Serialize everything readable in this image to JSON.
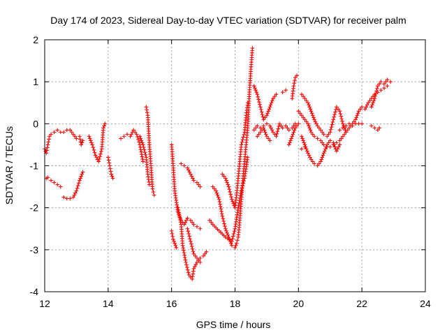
{
  "chart_data": {
    "type": "scatter",
    "title": "Day 174 of 2023, Sidereal Day-to-day VTEC variation (SDTVAR) for receiver palm",
    "xlabel": "GPS time / hours",
    "ylabel": "SDTVAR / TECUs",
    "xlim": [
      12,
      24
    ],
    "ylim": [
      -4,
      2
    ],
    "xticks": [
      "12",
      "14",
      "16",
      "18",
      "20",
      "22",
      "24"
    ],
    "yticks": [
      "2",
      "1",
      "0",
      "-1",
      "-2",
      "-3",
      "-4"
    ],
    "xtick_values": [
      12,
      14,
      16,
      18,
      20,
      22,
      24
    ],
    "ytick_values": [
      2,
      1,
      0,
      -1,
      -2,
      -3,
      -4
    ],
    "grid": true,
    "marker": "+",
    "marker_color": "#ff0000",
    "series": [
      {
        "name": "s1",
        "points": [
          [
            12.0,
            -0.6
          ],
          [
            12.05,
            -0.7
          ],
          [
            12.1,
            -0.5
          ],
          [
            12.15,
            -0.3
          ],
          [
            12.2,
            -0.25
          ],
          [
            12.3,
            -0.2
          ],
          [
            12.4,
            -0.15
          ],
          [
            12.5,
            -0.2
          ]
        ]
      },
      {
        "name": "s2",
        "points": [
          [
            12.05,
            -1.3
          ],
          [
            12.1,
            -1.28
          ],
          [
            12.2,
            -1.35
          ],
          [
            12.3,
            -1.4
          ],
          [
            12.4,
            -1.45
          ],
          [
            12.5,
            -1.5
          ]
        ]
      },
      {
        "name": "s3",
        "points": [
          [
            12.6,
            -1.75
          ],
          [
            12.7,
            -1.78
          ],
          [
            12.8,
            -1.78
          ],
          [
            12.9,
            -1.75
          ],
          [
            13.0,
            -1.6
          ],
          [
            13.1,
            -1.35
          ],
          [
            13.2,
            -1.15
          ]
        ]
      },
      {
        "name": "s4",
        "points": [
          [
            12.6,
            -0.2
          ],
          [
            12.7,
            -0.15
          ],
          [
            12.8,
            -0.15
          ],
          [
            12.9,
            -0.25
          ],
          [
            13.0,
            -0.35
          ],
          [
            13.1,
            -0.3
          ],
          [
            13.15,
            -0.5
          ],
          [
            13.2,
            -0.4
          ]
        ]
      },
      {
        "name": "s5",
        "points": [
          [
            13.4,
            -0.3
          ],
          [
            13.5,
            -0.5
          ],
          [
            13.6,
            -0.75
          ],
          [
            13.7,
            -0.9
          ],
          [
            13.8,
            -0.6
          ],
          [
            13.85,
            -0.1
          ],
          [
            13.9,
            0.0
          ]
        ]
      },
      {
        "name": "s6",
        "points": [
          [
            14.0,
            -0.8
          ],
          [
            14.05,
            -1.0
          ],
          [
            14.1,
            -1.2
          ],
          [
            14.15,
            -1.3
          ]
        ]
      },
      {
        "name": "s7",
        "points": [
          [
            14.4,
            -0.35
          ],
          [
            14.5,
            -0.3
          ],
          [
            14.6,
            -0.25
          ],
          [
            14.7,
            -0.3
          ],
          [
            14.8,
            -0.15
          ],
          [
            14.9,
            -0.25
          ],
          [
            15.0,
            -0.5
          ],
          [
            15.1,
            -0.9
          ]
        ]
      },
      {
        "name": "s8",
        "points": [
          [
            15.0,
            -0.3
          ],
          [
            15.1,
            -0.5
          ],
          [
            15.2,
            -0.8
          ],
          [
            15.25,
            -1.2
          ],
          [
            15.3,
            -1.45
          ]
        ]
      },
      {
        "name": "s9",
        "points": [
          [
            15.2,
            0.4
          ],
          [
            15.25,
            0.2
          ],
          [
            15.3,
            -0.5
          ],
          [
            15.35,
            -1.0
          ],
          [
            15.4,
            -1.55
          ],
          [
            15.45,
            -1.7
          ]
        ]
      },
      {
        "name": "s10",
        "points": [
          [
            16.0,
            -0.5
          ],
          [
            16.05,
            -1.0
          ],
          [
            16.1,
            -1.6
          ],
          [
            16.2,
            -2.1
          ],
          [
            16.3,
            -2.3
          ],
          [
            16.4,
            -2.4
          ],
          [
            16.5,
            -2.25
          ],
          [
            16.6,
            -2.3
          ],
          [
            16.7,
            -2.4
          ],
          [
            16.8,
            -2.45
          ],
          [
            16.9,
            -2.5
          ]
        ]
      },
      {
        "name": "s11",
        "points": [
          [
            16.0,
            -2.55
          ],
          [
            16.05,
            -2.75
          ],
          [
            16.1,
            -2.85
          ],
          [
            16.15,
            -2.95
          ]
        ]
      },
      {
        "name": "s12",
        "points": [
          [
            16.2,
            -2.0
          ],
          [
            16.3,
            -2.4
          ],
          [
            16.35,
            -2.9
          ],
          [
            16.45,
            -3.3
          ],
          [
            16.55,
            -3.6
          ],
          [
            16.65,
            -3.7
          ],
          [
            16.7,
            -3.45
          ],
          [
            16.8,
            -3.3
          ],
          [
            16.9,
            -3.2
          ],
          [
            17.0,
            -3.15
          ],
          [
            17.1,
            -3.05
          ]
        ]
      },
      {
        "name": "s13",
        "points": [
          [
            16.3,
            -0.95
          ],
          [
            16.4,
            -1.0
          ],
          [
            16.5,
            -1.05
          ],
          [
            16.6,
            -1.2
          ],
          [
            16.7,
            -1.35
          ],
          [
            16.8,
            -1.4
          ],
          [
            16.9,
            -1.5
          ]
        ]
      },
      {
        "name": "s14",
        "points": [
          [
            16.5,
            -2.5
          ],
          [
            16.6,
            -2.8
          ],
          [
            16.7,
            -3.1
          ],
          [
            16.8,
            -3.2
          ],
          [
            16.9,
            -3.3
          ]
        ]
      },
      {
        "name": "s15",
        "points": [
          [
            17.3,
            -1.5
          ],
          [
            17.4,
            -1.6
          ],
          [
            17.5,
            -1.8
          ],
          [
            17.6,
            -2.2
          ],
          [
            17.7,
            -2.5
          ],
          [
            17.8,
            -2.7
          ],
          [
            17.9,
            -2.9
          ],
          [
            18.0,
            -2.95
          ],
          [
            18.05,
            -2.85
          ],
          [
            18.1,
            -2.7
          ],
          [
            18.15,
            -2.3
          ],
          [
            18.2,
            -1.8
          ],
          [
            18.25,
            -1.3
          ],
          [
            18.3,
            -0.9
          ],
          [
            18.35,
            -0.5
          ],
          [
            18.4,
            -0.1
          ],
          [
            18.45,
            0.7
          ],
          [
            18.5,
            1.3
          ],
          [
            18.55,
            1.8
          ]
        ]
      },
      {
        "name": "s16",
        "points": [
          [
            17.6,
            -1.2
          ],
          [
            17.7,
            -1.3
          ],
          [
            17.8,
            -1.5
          ],
          [
            17.9,
            -1.8
          ],
          [
            18.0,
            -2.0
          ],
          [
            18.05,
            -1.7
          ],
          [
            18.1,
            -1.3
          ],
          [
            18.15,
            -0.9
          ],
          [
            18.2,
            -0.5
          ],
          [
            18.3,
            -0.2
          ],
          [
            18.35,
            0.2
          ],
          [
            18.4,
            0.5
          ]
        ]
      },
      {
        "name": "s17",
        "points": [
          [
            17.2,
            -2.3
          ],
          [
            17.3,
            -2.4
          ],
          [
            17.5,
            -2.55
          ],
          [
            17.7,
            -2.7
          ],
          [
            17.9,
            -2.8
          ],
          [
            18.0,
            -2.5
          ],
          [
            18.1,
            -2.0
          ],
          [
            18.2,
            -1.6
          ],
          [
            18.3,
            -1.3
          ],
          [
            18.4,
            -0.8
          ]
        ]
      },
      {
        "name": "s18",
        "points": [
          [
            18.6,
            -0.15
          ],
          [
            18.7,
            -0.05
          ],
          [
            18.8,
            -0.1
          ],
          [
            18.9,
            -0.05
          ],
          [
            19.0,
            0.0
          ],
          [
            19.1,
            -0.05
          ],
          [
            19.2,
            -0.2
          ],
          [
            19.3,
            -0.3
          ],
          [
            19.4,
            0.0
          ],
          [
            19.5,
            -0.1
          ],
          [
            19.6,
            -0.05
          ],
          [
            19.7,
            -0.15
          ],
          [
            19.8,
            -0.1
          ],
          [
            19.9,
            0.0
          ]
        ]
      },
      {
        "name": "s19",
        "points": [
          [
            18.6,
            0.9
          ],
          [
            18.7,
            0.7
          ],
          [
            18.8,
            0.4
          ],
          [
            18.9,
            0.1
          ],
          [
            19.0,
            0.2
          ],
          [
            19.1,
            0.4
          ],
          [
            19.2,
            0.6
          ],
          [
            19.3,
            0.7
          ]
        ]
      },
      {
        "name": "s20",
        "points": [
          [
            18.7,
            -0.3
          ],
          [
            18.8,
            -0.2
          ],
          [
            18.9,
            -0.1
          ],
          [
            19.0,
            -0.3
          ],
          [
            19.1,
            -0.4
          ]
        ]
      },
      {
        "name": "s21",
        "points": [
          [
            19.5,
            0.75
          ],
          [
            19.6,
            0.8
          ]
        ]
      },
      {
        "name": "s22",
        "points": [
          [
            19.7,
            -0.5
          ],
          [
            19.8,
            -0.3
          ],
          [
            19.9,
            -0.1
          ],
          [
            20.0,
            0.0
          ]
        ]
      },
      {
        "name": "s23",
        "points": [
          [
            19.8,
            0.6
          ],
          [
            19.85,
            0.9
          ],
          [
            19.9,
            1.1
          ],
          [
            19.95,
            1.15
          ]
        ]
      },
      {
        "name": "s24",
        "points": [
          [
            20.0,
            0.3
          ],
          [
            20.1,
            0.2
          ],
          [
            20.2,
            0.1
          ],
          [
            20.3,
            0.0
          ],
          [
            20.4,
            -0.2
          ],
          [
            20.5,
            -0.3
          ],
          [
            20.6,
            -0.35
          ],
          [
            20.7,
            -0.4
          ],
          [
            20.8,
            -0.5
          ],
          [
            20.9,
            -0.55
          ],
          [
            21.0,
            -0.55
          ],
          [
            21.1,
            -0.5
          ],
          [
            21.2,
            -0.45
          ],
          [
            21.3,
            -0.4
          ],
          [
            21.4,
            -0.3
          ],
          [
            21.5,
            -0.2
          ],
          [
            21.6,
            -0.1
          ],
          [
            21.7,
            0.0
          ],
          [
            21.8,
            0.1
          ],
          [
            21.9,
            0.3
          ],
          [
            22.0,
            0.4
          ]
        ]
      },
      {
        "name": "s25",
        "points": [
          [
            20.1,
            0.7
          ],
          [
            20.2,
            0.6
          ],
          [
            20.3,
            0.5
          ],
          [
            20.4,
            0.3
          ],
          [
            20.5,
            0.1
          ],
          [
            20.6,
            -0.05
          ],
          [
            20.7,
            -0.15
          ],
          [
            20.8,
            -0.25
          ],
          [
            20.9,
            -0.3
          ],
          [
            21.0,
            -0.2
          ],
          [
            21.1,
            0.1
          ],
          [
            21.2,
            0.4
          ],
          [
            21.3,
            0.3
          ],
          [
            21.4,
            0.0
          ],
          [
            21.5,
            -0.2
          ]
        ]
      },
      {
        "name": "s26",
        "points": [
          [
            20.1,
            -0.3
          ],
          [
            20.2,
            -0.5
          ],
          [
            20.3,
            -0.7
          ],
          [
            20.4,
            -0.85
          ],
          [
            20.5,
            -0.95
          ],
          [
            20.6,
            -1.0
          ],
          [
            20.7,
            -0.9
          ],
          [
            20.8,
            -0.7
          ],
          [
            20.9,
            -0.5
          ],
          [
            21.0,
            -0.4
          ],
          [
            21.1,
            -0.45
          ],
          [
            21.2,
            -0.65
          ],
          [
            21.3,
            -0.5
          ]
        ]
      },
      {
        "name": "s27",
        "points": [
          [
            20.1,
            -0.6
          ],
          [
            20.2,
            -0.55
          ]
        ]
      },
      {
        "name": "s28",
        "points": [
          [
            21.3,
            -0.15
          ],
          [
            21.4,
            -0.1
          ],
          [
            21.5,
            -0.05
          ],
          [
            21.6,
            0.0
          ],
          [
            21.7,
            -0.05
          ],
          [
            21.8,
            0.0
          ],
          [
            21.9,
            0.0
          ],
          [
            22.0,
            0.0
          ]
        ]
      },
      {
        "name": "s29",
        "points": [
          [
            22.1,
            0.35
          ],
          [
            22.2,
            0.5
          ],
          [
            22.3,
            0.6
          ],
          [
            22.4,
            0.7
          ],
          [
            22.5,
            0.75
          ],
          [
            22.6,
            0.8
          ],
          [
            22.7,
            0.85
          ],
          [
            22.8,
            0.9
          ]
        ]
      },
      {
        "name": "s30",
        "points": [
          [
            22.3,
            0.4
          ],
          [
            22.4,
            0.6
          ],
          [
            22.5,
            0.9
          ],
          [
            22.6,
            1.0
          ],
          [
            22.7,
            0.95
          ],
          [
            22.8,
            1.05
          ],
          [
            22.9,
            1.0
          ]
        ]
      },
      {
        "name": "s31",
        "points": [
          [
            22.3,
            -0.05
          ],
          [
            22.4,
            -0.1
          ],
          [
            22.5,
            -0.15
          ],
          [
            22.55,
            -0.1
          ]
        ]
      }
    ]
  }
}
